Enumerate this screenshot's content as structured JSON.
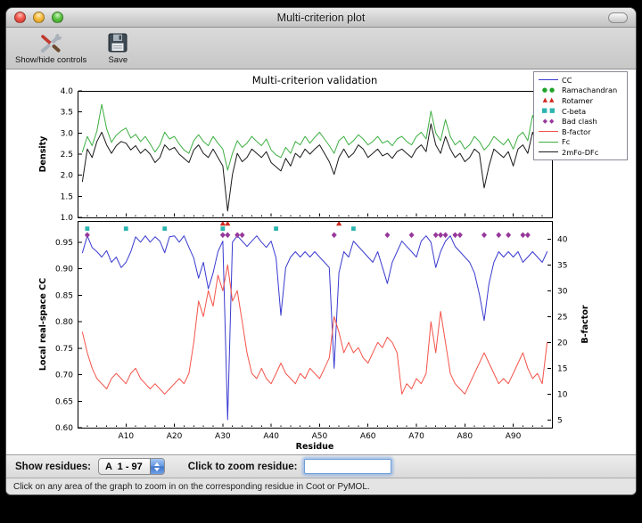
{
  "window": {
    "title": "Multi-criterion plot"
  },
  "toolbar": {
    "show_hide_label": "Show/hide controls",
    "save_label": "Save"
  },
  "controls": {
    "show_residues_label": "Show residues:",
    "residue_range_value": "A  1 - 97",
    "zoom_label": "Click to zoom residue:",
    "zoom_value": ""
  },
  "status_bar": {
    "text": "Click on any area of the graph to zoom in on the corresponding residue in Coot or PyMOL."
  },
  "figure": {
    "title": "Multi-criterion validation",
    "legend": {
      "items": [
        {
          "label": "CC",
          "sample": "line",
          "color": "#3a3ad0"
        },
        {
          "label": "Ramachandran",
          "sample": "circle",
          "color": "#1fa32a"
        },
        {
          "label": "Rotamer",
          "sample": "triangle",
          "color": "#cf2b21"
        },
        {
          "label": "C-beta",
          "sample": "square",
          "color": "#2cb5b0"
        },
        {
          "label": "Bad clash",
          "sample": "diamond",
          "color": "#97389b"
        },
        {
          "label": "B-factor",
          "sample": "line",
          "color": "#f4534a"
        },
        {
          "label": "Fc",
          "sample": "line",
          "color": "#3daf42"
        },
        {
          "label": "2mFo-DFc",
          "sample": "line",
          "color": "#1a1a1a"
        }
      ]
    }
  },
  "chart_data": [
    {
      "type": "line",
      "title": "Multi-criterion validation",
      "ylabel": "Density",
      "ylim": [
        1.0,
        4.0
      ],
      "yticks": [
        1.0,
        1.5,
        2.0,
        2.5,
        3.0,
        3.5,
        4.0
      ],
      "xlim": [
        0,
        98
      ],
      "x_major_step": 10,
      "x_minor_step": 2,
      "series": [
        {
          "name": "Fc",
          "color": "#3daf42",
          "x_start": 1,
          "values": [
            2.55,
            2.92,
            2.7,
            3.05,
            3.68,
            3.1,
            2.78,
            2.95,
            3.05,
            3.12,
            2.88,
            2.97,
            2.8,
            2.92,
            2.74,
            2.55,
            2.72,
            3.02,
            2.86,
            2.92,
            2.74,
            2.6,
            2.52,
            2.82,
            2.96,
            2.8,
            2.7,
            2.92,
            2.76,
            2.62,
            2.12,
            2.52,
            2.82,
            2.66,
            2.76,
            2.92,
            2.8,
            2.7,
            2.86,
            2.6,
            2.48,
            2.42,
            2.66,
            2.52,
            2.8,
            2.72,
            2.92,
            2.76,
            2.9,
            3.02,
            2.86,
            2.7,
            2.52,
            2.82,
            2.92,
            2.72,
            2.82,
            2.96,
            2.86,
            2.72,
            2.8,
            2.92,
            2.76,
            2.82,
            2.7,
            2.86,
            2.92,
            2.8,
            2.72,
            2.92,
            3.02,
            2.86,
            3.52,
            3.0,
            2.82,
            3.32,
            2.92,
            2.72,
            2.82,
            2.62,
            2.72,
            2.92,
            2.8,
            2.6,
            2.72,
            2.92,
            2.82,
            2.72,
            2.86,
            2.62,
            2.92,
            3.02,
            2.82,
            3.42,
            3.1,
            2.92,
            3.3
          ]
        },
        {
          "name": "2mFo-DFc",
          "color": "#1a1a1a",
          "x_start": 1,
          "values": [
            1.85,
            2.62,
            2.42,
            2.8,
            3.02,
            2.72,
            2.52,
            2.7,
            2.8,
            2.76,
            2.6,
            2.7,
            2.52,
            2.62,
            2.5,
            2.3,
            2.42,
            2.72,
            2.6,
            2.66,
            2.5,
            2.4,
            2.3,
            2.6,
            2.72,
            2.52,
            2.42,
            2.62,
            2.42,
            2.22,
            1.15,
            2.02,
            2.52,
            2.32,
            2.42,
            2.62,
            2.52,
            2.42,
            2.56,
            2.3,
            2.2,
            2.1,
            2.4,
            2.22,
            2.52,
            2.42,
            2.62,
            2.5,
            2.62,
            2.72,
            2.52,
            2.32,
            2.02,
            2.42,
            2.62,
            2.42,
            2.52,
            2.72,
            2.62,
            2.42,
            2.52,
            2.62,
            2.46,
            2.52,
            2.4,
            2.56,
            2.62,
            2.52,
            2.42,
            2.62,
            2.72,
            2.56,
            3.22,
            2.72,
            2.52,
            2.92,
            2.62,
            2.42,
            2.52,
            2.32,
            2.42,
            2.62,
            2.52,
            1.7,
            2.22,
            2.62,
            2.52,
            2.42,
            2.56,
            2.22,
            2.62,
            2.72,
            2.52,
            3.02,
            2.72,
            2.52,
            2.92
          ]
        }
      ]
    },
    {
      "type": "line+scatter",
      "xlabel": "Residue",
      "ylabel": "Local real-space CC",
      "ylabel_right": "B-factor",
      "ylim": [
        0.6,
        0.99
      ],
      "yticks": [
        0.6,
        0.65,
        0.7,
        0.75,
        0.8,
        0.85,
        0.9,
        0.95
      ],
      "ylim_right": [
        3.5,
        43.5
      ],
      "yticks_right": [
        5,
        10,
        15,
        20,
        25,
        30,
        35,
        40
      ],
      "xlim": [
        0,
        98
      ],
      "x_major_step": 10,
      "x_minor_step": 2,
      "xticks": {
        "positions": [
          10,
          20,
          30,
          40,
          50,
          60,
          70,
          80,
          90
        ],
        "labels": [
          "A10",
          "A20",
          "A30",
          "A40",
          "A50",
          "A60",
          "A70",
          "A80",
          "A90"
        ]
      },
      "series": [
        {
          "name": "CC",
          "axis": "left",
          "color": "#3a3ad0",
          "x_start": 1,
          "values": [
            0.93,
            0.962,
            0.94,
            0.932,
            0.922,
            0.934,
            0.912,
            0.922,
            0.902,
            0.912,
            0.932,
            0.96,
            0.95,
            0.962,
            0.95,
            0.96,
            0.952,
            0.93,
            0.96,
            0.962,
            0.95,
            0.962,
            0.94,
            0.92,
            0.882,
            0.912,
            0.862,
            0.892,
            0.932,
            0.952,
            0.615,
            0.95,
            0.962,
            0.952,
            0.942,
            0.952,
            0.962,
            0.95,
            0.94,
            0.952,
            0.92,
            0.812,
            0.902,
            0.922,
            0.932,
            0.922,
            0.932,
            0.922,
            0.932,
            0.922,
            0.912,
            0.902,
            0.712,
            0.892,
            0.932,
            0.922,
            0.952,
            0.942,
            0.932,
            0.922,
            0.912,
            0.932,
            0.902,
            0.872,
            0.912,
            0.932,
            0.952,
            0.942,
            0.932,
            0.922,
            0.952,
            0.962,
            0.95,
            0.902,
            0.932,
            0.952,
            0.962,
            0.942,
            0.932,
            0.922,
            0.912,
            0.892,
            0.852,
            0.802,
            0.872,
            0.912,
            0.932,
            0.922,
            0.932,
            0.922,
            0.932,
            0.912,
            0.922,
            0.932,
            0.922,
            0.912,
            0.932
          ]
        },
        {
          "name": "B-factor",
          "axis": "right",
          "color": "#f4534a",
          "x_start": 1,
          "values": [
            22,
            18,
            15,
            13,
            12,
            11,
            13,
            14,
            13,
            12,
            14,
            15,
            13,
            12,
            11,
            12,
            11,
            10,
            11,
            12,
            13,
            12,
            14,
            20,
            28,
            25,
            30,
            27,
            33,
            30,
            35,
            28,
            30,
            24,
            18,
            14,
            13,
            15,
            13,
            12,
            14,
            16,
            14,
            13,
            12,
            14,
            13,
            15,
            14,
            13,
            15,
            17,
            25,
            22,
            18,
            20,
            18,
            19,
            17,
            16,
            18,
            20,
            19,
            21,
            20,
            18,
            10,
            12,
            11,
            13,
            12,
            14,
            24,
            18,
            26,
            20,
            14,
            12,
            11,
            10,
            12,
            14,
            16,
            18,
            16,
            14,
            12,
            13,
            12,
            14,
            16,
            18,
            15,
            13,
            14,
            12,
            20
          ]
        }
      ],
      "scatter": [
        {
          "name": "Rotamer",
          "marker": "triangle",
          "color": "#cf2b21",
          "y": 0.985,
          "residues": [
            30,
            31,
            54
          ]
        },
        {
          "name": "C-beta",
          "marker": "square",
          "color": "#2cb5b0",
          "y": 0.9755,
          "residues": [
            2,
            10,
            18,
            30,
            41,
            57
          ]
        },
        {
          "name": "Bad clash",
          "marker": "diamond",
          "color": "#97389b",
          "y": 0.9635,
          "residues": [
            2,
            30,
            31,
            33,
            34,
            53,
            64,
            69,
            74,
            75,
            76,
            78,
            79,
            84,
            87,
            89,
            92,
            93
          ]
        }
      ]
    }
  ]
}
